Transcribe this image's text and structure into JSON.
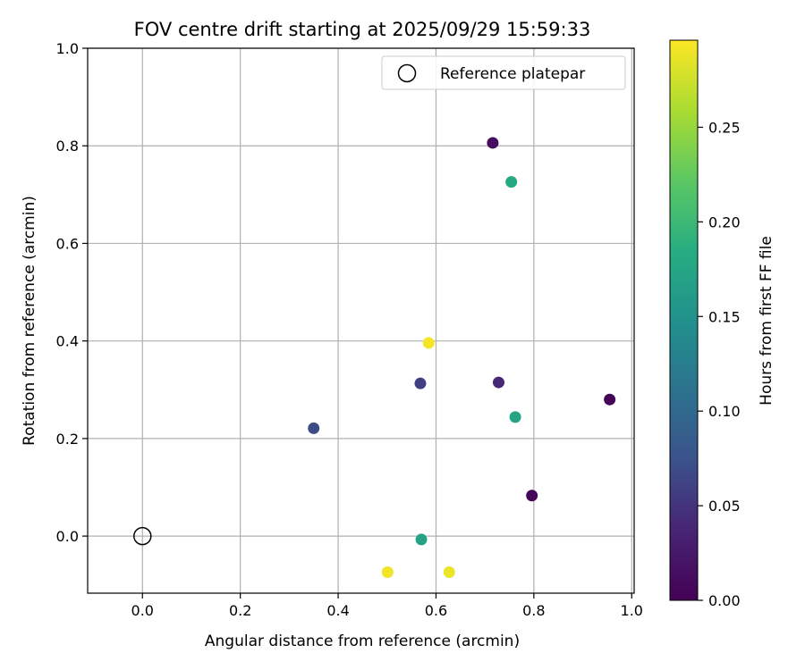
{
  "chart_data": {
    "type": "scatter",
    "title": "FOV centre drift starting at 2025/09/29 15:59:33",
    "xlabel": "Angular distance from reference (arcmin)",
    "ylabel": "Rotation from reference (arcmin)",
    "xlim": [
      -0.112,
      1.005
    ],
    "ylim": [
      -0.117,
      1.0
    ],
    "x_ticks": [
      0.0,
      0.2,
      0.4,
      0.6,
      0.8,
      1.0
    ],
    "x_tick_labels": [
      "0.0",
      "0.2",
      "0.4",
      "0.6",
      "0.8",
      "1.0"
    ],
    "y_ticks": [
      0.0,
      0.2,
      0.4,
      0.6,
      0.8,
      1.0
    ],
    "y_tick_labels": [
      "0.0",
      "0.2",
      "0.4",
      "0.6",
      "0.8",
      "1.0"
    ],
    "grid": true,
    "legend": {
      "placement": "top-right",
      "entries": [
        {
          "label": "Reference platepar",
          "marker": "open-circle"
        }
      ]
    },
    "reference_point": {
      "x": 0.0,
      "y": 0.0
    },
    "points": [
      {
        "x": 0.716,
        "y": 0.806,
        "hours": 0.012
      },
      {
        "x": 0.796,
        "y": 0.083,
        "hours": 0.005
      },
      {
        "x": 0.955,
        "y": 0.28,
        "hours": 0.002
      },
      {
        "x": 0.728,
        "y": 0.315,
        "hours": 0.04
      },
      {
        "x": 0.568,
        "y": 0.313,
        "hours": 0.058
      },
      {
        "x": 0.35,
        "y": 0.221,
        "hours": 0.068
      },
      {
        "x": 0.754,
        "y": 0.726,
        "hours": 0.178
      },
      {
        "x": 0.762,
        "y": 0.244,
        "hours": 0.172
      },
      {
        "x": 0.57,
        "y": -0.007,
        "hours": 0.17
      },
      {
        "x": 0.585,
        "y": 0.396,
        "hours": 0.292
      },
      {
        "x": 0.501,
        "y": -0.074,
        "hours": 0.29
      },
      {
        "x": 0.627,
        "y": -0.074,
        "hours": 0.288
      }
    ],
    "colorbar": {
      "label": "Hours from first FF file",
      "range": [
        0.0,
        0.296
      ],
      "ticks": [
        0.0,
        0.05,
        0.1,
        0.15,
        0.2,
        0.25
      ],
      "tick_labels": [
        "0.00",
        "0.05",
        "0.10",
        "0.15",
        "0.20",
        "0.25"
      ],
      "colormap": "viridis"
    }
  }
}
